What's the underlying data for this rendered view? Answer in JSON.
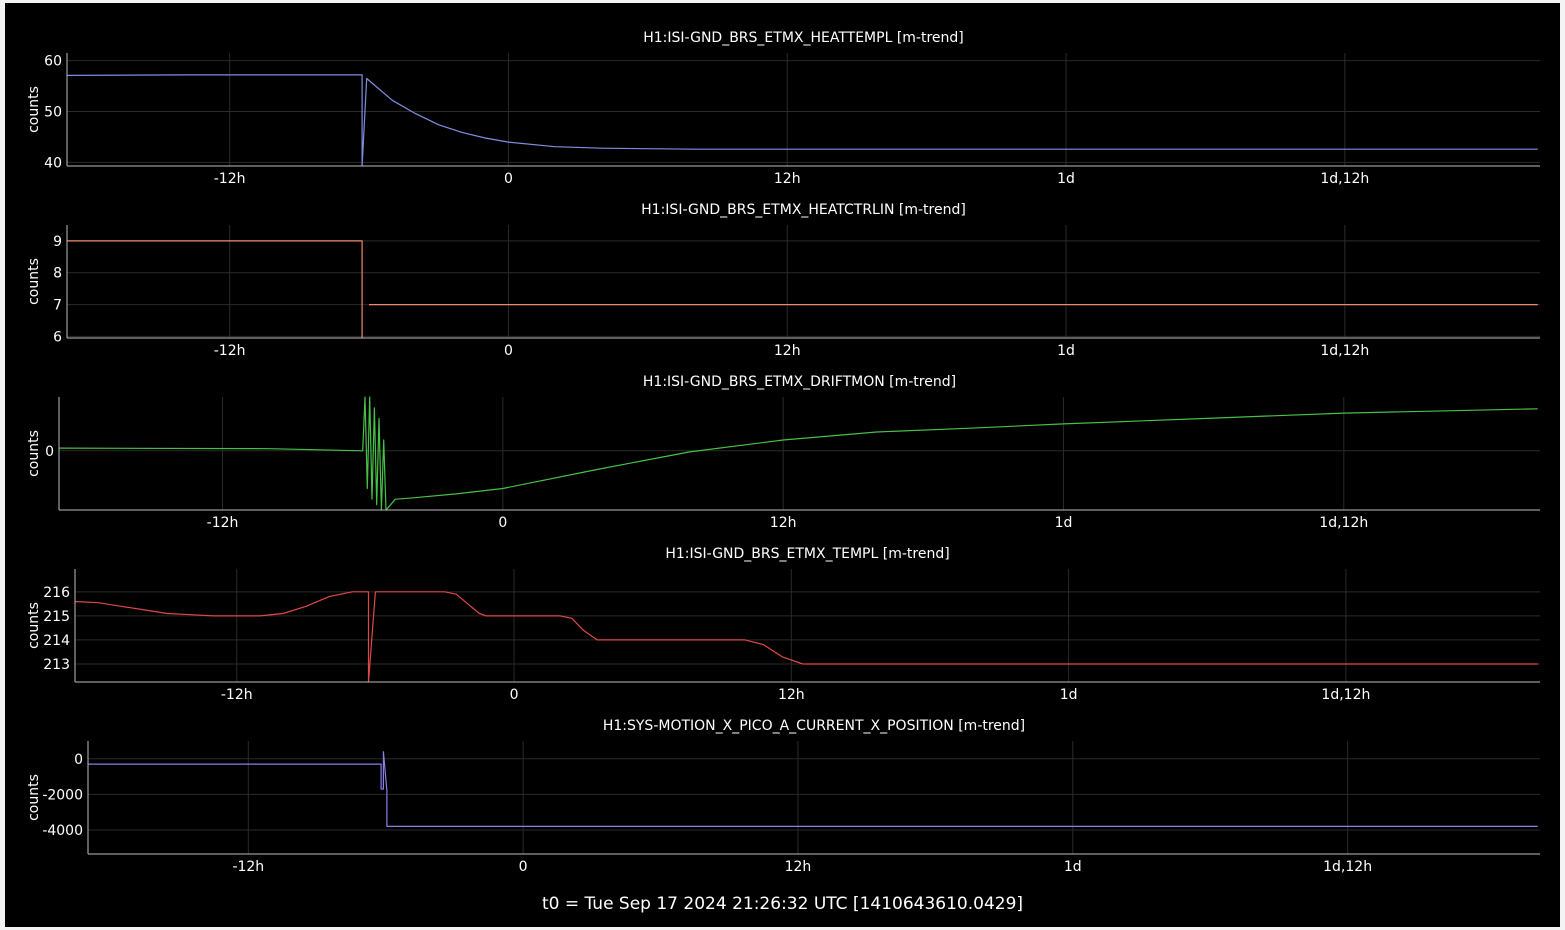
{
  "footer": {
    "t0_label": "t0 = Tue Sep 17 2024 21:26:32 UTC [1410643610.0429]"
  },
  "colors": {
    "background": "#000000",
    "text": "#ffffff",
    "axis": "#bbbbbb",
    "grid": "#2a2a2a"
  },
  "x_axis": {
    "units": "hours relative to t0",
    "range": [
      -19,
      44.4
    ],
    "ticks": [
      {
        "value": -12,
        "label": "-12h"
      },
      {
        "value": 0,
        "label": "0"
      },
      {
        "value": 12,
        "label": "12h"
      },
      {
        "value": 24,
        "label": "1d"
      },
      {
        "value": 36,
        "label": "1d,12h"
      }
    ]
  },
  "chart_data": [
    {
      "type": "line",
      "title": "H1:ISI-GND_BRS_ETMX_HEATTEMPL [m-trend]",
      "ylabel": "counts",
      "ylim": [
        39.3,
        61.5
      ],
      "yticks": [
        {
          "value": 40,
          "label": "40"
        },
        {
          "value": 50,
          "label": "50"
        },
        {
          "value": 60,
          "label": "60"
        }
      ],
      "color": "#7f8fe0",
      "series": [
        {
          "x": [
            -19,
            -14,
            -9,
            -6.3,
            -6.3,
            -6.1,
            -5,
            -4,
            -3,
            -2,
            -1,
            0,
            2,
            4,
            8,
            16,
            24,
            32,
            38,
            44.3
          ],
          "y": [
            57.1,
            57.2,
            57.2,
            57.2,
            39.3,
            56.5,
            52.2,
            49.6,
            47.4,
            45.9,
            44.8,
            44.0,
            43.1,
            42.8,
            42.6,
            42.6,
            42.6,
            42.6,
            42.6,
            42.6
          ]
        }
      ]
    },
    {
      "type": "line",
      "title": "H1:ISI-GND_BRS_ETMX_HEATCTRLIN [m-trend]",
      "ylabel": "counts",
      "ylim": [
        5.95,
        9.5
      ],
      "yticks": [
        {
          "value": 6,
          "label": "6"
        },
        {
          "value": 7,
          "label": "7"
        },
        {
          "value": 8,
          "label": "8"
        },
        {
          "value": 9,
          "label": "9"
        }
      ],
      "color": "#f08a6c",
      "series": [
        {
          "x": [
            -19,
            -6.3,
            -6.3
          ],
          "y": [
            9,
            9,
            5.95
          ]
        },
        {
          "x": [
            -6.0,
            44.3
          ],
          "y": [
            7,
            7
          ]
        }
      ]
    },
    {
      "type": "line",
      "title": "H1:ISI-GND_BRS_ETMX_DRIFTMON [m-trend]",
      "ylabel": "counts",
      "ylim": [
        -1.1,
        1.0
      ],
      "yticks": [
        {
          "value": 0,
          "label": "0"
        }
      ],
      "color": "#48c048",
      "series": [
        {
          "x": [
            -19,
            -10,
            -6.0,
            -5.9,
            -5.8,
            -5.7,
            -5.6,
            -5.5,
            -5.4,
            -5.3,
            -5.2,
            -5.1,
            -5.0,
            -4.6,
            -4.6,
            -4,
            -2,
            0,
            4,
            8,
            12,
            16,
            20,
            24,
            30,
            36,
            44.3
          ],
          "y": [
            0.05,
            0.04,
            0.0,
            1.0,
            -0.7,
            1.0,
            -0.9,
            0.8,
            -1.0,
            0.6,
            -1.1,
            0.2,
            -1.1,
            -0.9,
            -0.9,
            -0.88,
            -0.8,
            -0.7,
            -0.35,
            -0.02,
            0.2,
            0.35,
            0.42,
            0.5,
            0.6,
            0.7,
            0.78
          ]
        }
      ]
    },
    {
      "type": "line",
      "title": "H1:ISI-GND_BRS_ETMX_TEMPL [m-trend]",
      "ylabel": "counts",
      "ylim": [
        212.25,
        216.95
      ],
      "yticks": [
        {
          "value": 213,
          "label": "213"
        },
        {
          "value": 214,
          "label": "214"
        },
        {
          "value": 215,
          "label": "215"
        },
        {
          "value": 216,
          "label": "216"
        }
      ],
      "color": "#e04848",
      "series": [
        {
          "x": [
            -19,
            -18,
            -17,
            -16,
            -15,
            -14,
            -13,
            -12,
            -11,
            -10,
            -9,
            -8,
            -7,
            -6.3,
            -6.3,
            -6.0,
            -3.0,
            -2.5,
            -2.0,
            -1.5,
            -1.2,
            0,
            2.0,
            2.5,
            3.0,
            3.6,
            6,
            9,
            10.0,
            10.8,
            11.6,
            12.5,
            16,
            24,
            32,
            38,
            44.3
          ],
          "y": [
            215.6,
            215.55,
            215.4,
            215.25,
            215.1,
            215.05,
            215.0,
            215.0,
            215.0,
            215.1,
            215.4,
            215.8,
            216.0,
            216.0,
            212.25,
            216.0,
            216.0,
            215.9,
            215.5,
            215.1,
            215.0,
            215.0,
            215.0,
            214.9,
            214.4,
            214.0,
            214.0,
            214.0,
            214.0,
            213.8,
            213.3,
            213.0,
            213.0,
            213.0,
            213.0,
            213.0,
            213.0
          ]
        }
      ]
    },
    {
      "type": "line",
      "title": "H1:SYS-MOTION_X_PICO_A_CURRENT_X_POSITION [m-trend]",
      "ylabel": "counts",
      "ylim": [
        -5350,
        1000
      ],
      "yticks": [
        {
          "value": -4000,
          "label": "-4000"
        },
        {
          "value": -2000,
          "label": "-2000"
        },
        {
          "value": 0,
          "label": "0"
        }
      ],
      "color": "#8a7fe8",
      "series": [
        {
          "x": [
            -19,
            -6.2,
            -6.2,
            -6.1,
            -6.1,
            -5.95,
            -5.95,
            44.3
          ],
          "y": [
            -300,
            -300,
            -1700,
            -1700,
            400,
            -1800,
            -3800,
            -3800
          ]
        }
      ]
    }
  ]
}
